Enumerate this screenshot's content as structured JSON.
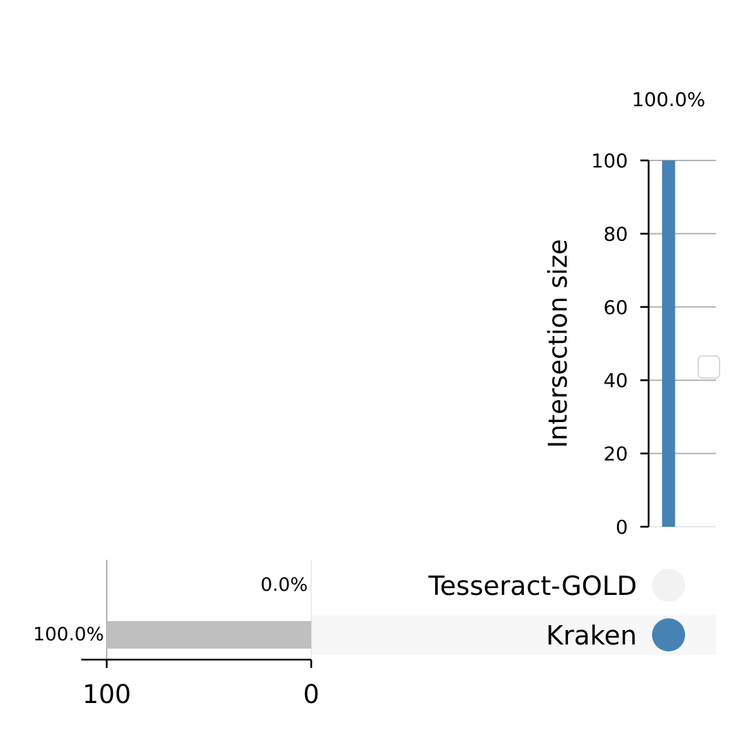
{
  "chart_data": {
    "type": "bar",
    "intersections": [
      {
        "sets": [
          "Kraken"
        ],
        "size": 100,
        "label": "100.0%"
      }
    ],
    "intersection_axis": {
      "ylabel": "Intersection size",
      "ylim": [
        0,
        100
      ],
      "ticks": [
        "0",
        "20",
        "40",
        "60",
        "80",
        "100"
      ],
      "grid": true
    },
    "sets": [
      {
        "name": "Tesseract-GOLD",
        "size": 0,
        "label": "0.0%"
      },
      {
        "name": "Kraken",
        "size": 100,
        "label": "100.0%"
      }
    ],
    "set_size_axis": {
      "xlim_reversed": [
        0,
        100
      ],
      "ticks": [
        "100",
        "0"
      ],
      "grid": true
    },
    "matrix": {
      "columns": [
        {
          "members": {
            "Tesseract-GOLD": false,
            "Kraken": true
          }
        }
      ]
    },
    "colors": {
      "intersection_bar": "#4682b4",
      "set_size_bar": "#bfbfbf",
      "active_dot": "#4682b4",
      "inactive_dot": "#f2f2f2",
      "stripe": "#f7f7f7"
    },
    "legend": {
      "entries": []
    }
  }
}
